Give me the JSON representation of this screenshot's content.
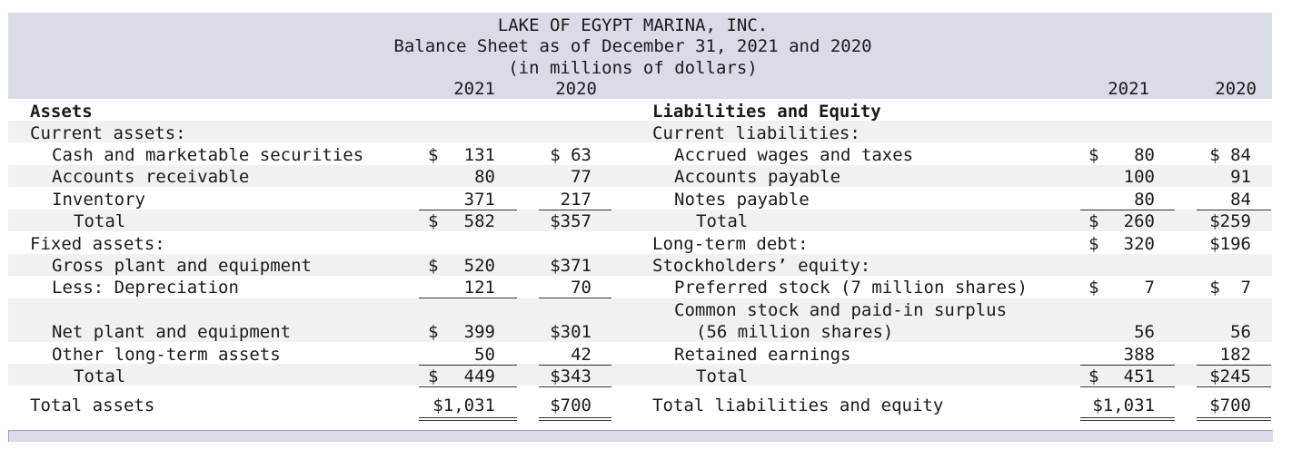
{
  "header": {
    "company": "LAKE OF EGYPT MARINA, INC.",
    "statement": "Balance Sheet as of December 31, 2021 and 2020",
    "units": "(in millions of dollars)",
    "year1": "2021",
    "year2": "2020"
  },
  "assets": {
    "heading": "Assets",
    "current_heading": "Current assets:",
    "cash_label": "Cash and marketable securities",
    "cash_2021_cur": "$",
    "cash_2021": "131",
    "cash_2020": "$ 63",
    "ar_label": "Accounts receivable",
    "ar_2021": "80",
    "ar_2020": "77",
    "inv_label": "Inventory",
    "inv_2021": "371",
    "inv_2020": "217",
    "cur_total_label": "Total",
    "cur_total_2021_cur": "$",
    "cur_total_2021": "582",
    "cur_total_2020": "$357",
    "fixed_heading": "Fixed assets:",
    "gross_label": "Gross plant and equipment",
    "gross_2021_cur": "$",
    "gross_2021": "520",
    "gross_2020": "$371",
    "dep_label": "Less: Depreciation",
    "dep_2021": "121",
    "dep_2020": "70",
    "net_label": "Net plant and equipment",
    "net_2021_cur": "$",
    "net_2021": "399",
    "net_2020": "$301",
    "other_label": "Other long-term assets",
    "other_2021": "50",
    "other_2020": "42",
    "fixed_total_label": "Total",
    "fixed_total_2021_cur": "$",
    "fixed_total_2021": "449",
    "fixed_total_2020": "$343",
    "total_label": "Total assets",
    "total_2021": "$1,031",
    "total_2020": "$700"
  },
  "liabilities": {
    "heading": "Liabilities and Equity",
    "current_heading": "Current liabilities:",
    "wages_label": "Accrued wages and taxes",
    "wages_2021_cur": "$",
    "wages_2021": "80",
    "wages_2020": "$ 84",
    "ap_label": "Accounts payable",
    "ap_2021": "100",
    "ap_2020": "91",
    "np_label": "Notes payable",
    "np_2021": "80",
    "np_2020": "84",
    "cur_total_label": "Total",
    "cur_total_2021_cur": "$",
    "cur_total_2021": "260",
    "cur_total_2020": "$259",
    "ltd_label": "Long-term debt:",
    "ltd_2021_cur": "$",
    "ltd_2021": "320",
    "ltd_2020": "$196",
    "se_heading": "Stockholders’ equity:",
    "pref_label": "Preferred stock (7 million shares)",
    "pref_2021_cur": "$",
    "pref_2021": "7",
    "pref_2020": "$  7",
    "common_label_1": "Common stock and paid-in surplus",
    "common_label_2": "(56 million shares)",
    "common_2021": "56",
    "common_2020": "56",
    "re_label": "Retained earnings",
    "re_2021": "388",
    "re_2020": "182",
    "eq_total_label": "Total",
    "eq_total_2021_cur": "$",
    "eq_total_2021": "451",
    "eq_total_2020": "$245",
    "total_label": "Total liabilities and equity",
    "total_2021": "$1,031",
    "total_2020": "$700"
  }
}
